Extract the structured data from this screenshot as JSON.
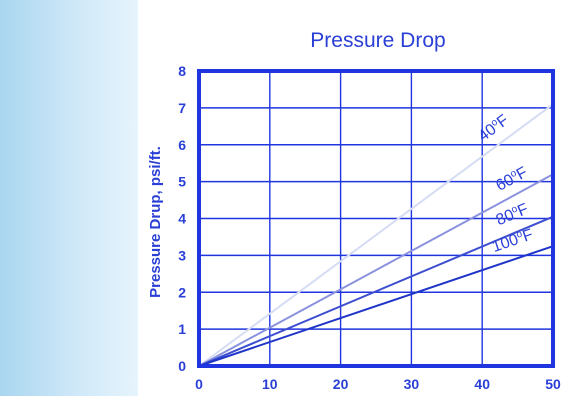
{
  "chart_data": {
    "type": "line",
    "title": "Pressure Drop",
    "ylabel": "Pressure Drup, psi/ft.",
    "xlabel": "",
    "xlim": [
      0,
      50
    ],
    "ylim": [
      0,
      8
    ],
    "x_ticks": [
      "0",
      "10",
      "20",
      "30",
      "40",
      "50"
    ],
    "y_ticks": [
      "0",
      "1",
      "2",
      "3",
      "4",
      "5",
      "6",
      "7",
      "8"
    ],
    "grid": true,
    "legend": "inline labels on lines",
    "series": [
      {
        "name": "40°F",
        "x": [
          0,
          50
        ],
        "y": [
          0,
          7.1
        ],
        "color": "#d6dcf4",
        "label_base": "40",
        "label_unit": "F"
      },
      {
        "name": "60°F",
        "x": [
          0,
          50
        ],
        "y": [
          0,
          5.2
        ],
        "color": "#8a92de",
        "label_base": "60",
        "label_unit": "F"
      },
      {
        "name": "80°F",
        "x": [
          0,
          50
        ],
        "y": [
          0,
          4.05
        ],
        "color": "#3d4fd0",
        "label_base": "80",
        "label_unit": "F"
      },
      {
        "name": "100°F",
        "x": [
          0,
          50
        ],
        "y": [
          0,
          3.25
        ],
        "color": "#1f35c8",
        "label_base": "100",
        "label_unit": "F"
      }
    ],
    "colors": {
      "axis": "#1f35e0",
      "grid": "#1f35e0",
      "text": "#2a3fd6"
    }
  }
}
